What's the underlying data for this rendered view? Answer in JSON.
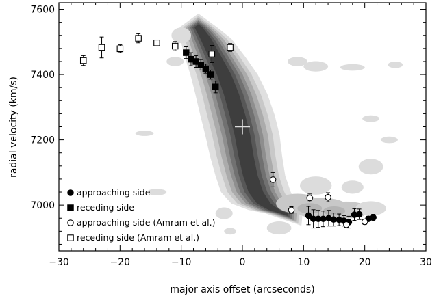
{
  "chart_data": {
    "type": "scatter",
    "title": "",
    "xlabel": "major axis offset (arcseconds)",
    "ylabel": "radial velocity (km/s)",
    "xlim": [
      -30,
      30
    ],
    "ylim": [
      6860,
      7620
    ],
    "xticks": [
      -30,
      -20,
      -10,
      0,
      10,
      20,
      30
    ],
    "yticks": [
      7000,
      7200,
      7400,
      7600
    ],
    "xtick_labels": [
      "−30",
      "−20",
      "−10",
      "0",
      "10",
      "20",
      "30"
    ],
    "ytick_labels": [
      "7000",
      "7200",
      "7400",
      "7600"
    ],
    "grid": false,
    "legend_position": "bottom-left",
    "background": "grayscale position-velocity contour map",
    "center_marker": {
      "x": 0,
      "y": 7240
    },
    "series": [
      {
        "name": "approaching side",
        "marker": "filled-circle",
        "points": [
          {
            "x": 10.8,
            "y": 6968,
            "err": 28
          },
          {
            "x": 11.6,
            "y": 6958,
            "err": 28
          },
          {
            "x": 12.4,
            "y": 6958,
            "err": 26
          },
          {
            "x": 13.2,
            "y": 6958,
            "err": 24
          },
          {
            "x": 14.1,
            "y": 6960,
            "err": 24
          },
          {
            "x": 14.9,
            "y": 6956,
            "err": 20
          },
          {
            "x": 15.8,
            "y": 6955,
            "err": 18
          },
          {
            "x": 16.6,
            "y": 6952,
            "err": 16
          },
          {
            "x": 17.4,
            "y": 6948,
            "err": 18
          },
          {
            "x": 18.3,
            "y": 6971,
            "err": 18
          },
          {
            "x": 19.1,
            "y": 6972,
            "err": 16
          },
          {
            "x": 20.6,
            "y": 6958,
            "err": 8
          },
          {
            "x": 21.4,
            "y": 6962,
            "err": 10
          }
        ]
      },
      {
        "name": "receding side",
        "marker": "filled-square",
        "points": [
          {
            "x": -9.2,
            "y": 7467,
            "err": 18
          },
          {
            "x": -8.4,
            "y": 7447,
            "err": 20
          },
          {
            "x": -7.6,
            "y": 7440,
            "err": 18
          },
          {
            "x": -6.8,
            "y": 7430,
            "err": 16
          },
          {
            "x": -6.0,
            "y": 7418,
            "err": 14
          },
          {
            "x": -5.2,
            "y": 7400,
            "err": 14
          },
          {
            "x": -4.4,
            "y": 7362,
            "err": 18
          }
        ]
      },
      {
        "name": "approaching side (Amram et al.)",
        "marker": "open-circle",
        "points": [
          {
            "x": 5.0,
            "y": 7078,
            "err": 22
          },
          {
            "x": 8.0,
            "y": 6985,
            "err": 10
          },
          {
            "x": 11.0,
            "y": 7022,
            "err": 12
          },
          {
            "x": 14.0,
            "y": 7024,
            "err": 14
          },
          {
            "x": 17.0,
            "y": 6940,
            "err": 8
          },
          {
            "x": 20.0,
            "y": 6949,
            "err": 8
          }
        ]
      },
      {
        "name": "receding side (Amram et al.)",
        "marker": "open-square",
        "points": [
          {
            "x": -26.0,
            "y": 7443,
            "err": 15
          },
          {
            "x": -23.0,
            "y": 7483,
            "err": 32
          },
          {
            "x": -20.0,
            "y": 7479,
            "err": 12
          },
          {
            "x": -17.0,
            "y": 7511,
            "err": 14
          },
          {
            "x": -14.0,
            "y": 7497,
            "err": 8
          },
          {
            "x": -11.0,
            "y": 7487,
            "err": 14
          },
          {
            "x": -5.0,
            "y": 7463,
            "err": 26
          },
          {
            "x": -2.0,
            "y": 7483,
            "err": 12
          }
        ]
      }
    ]
  }
}
